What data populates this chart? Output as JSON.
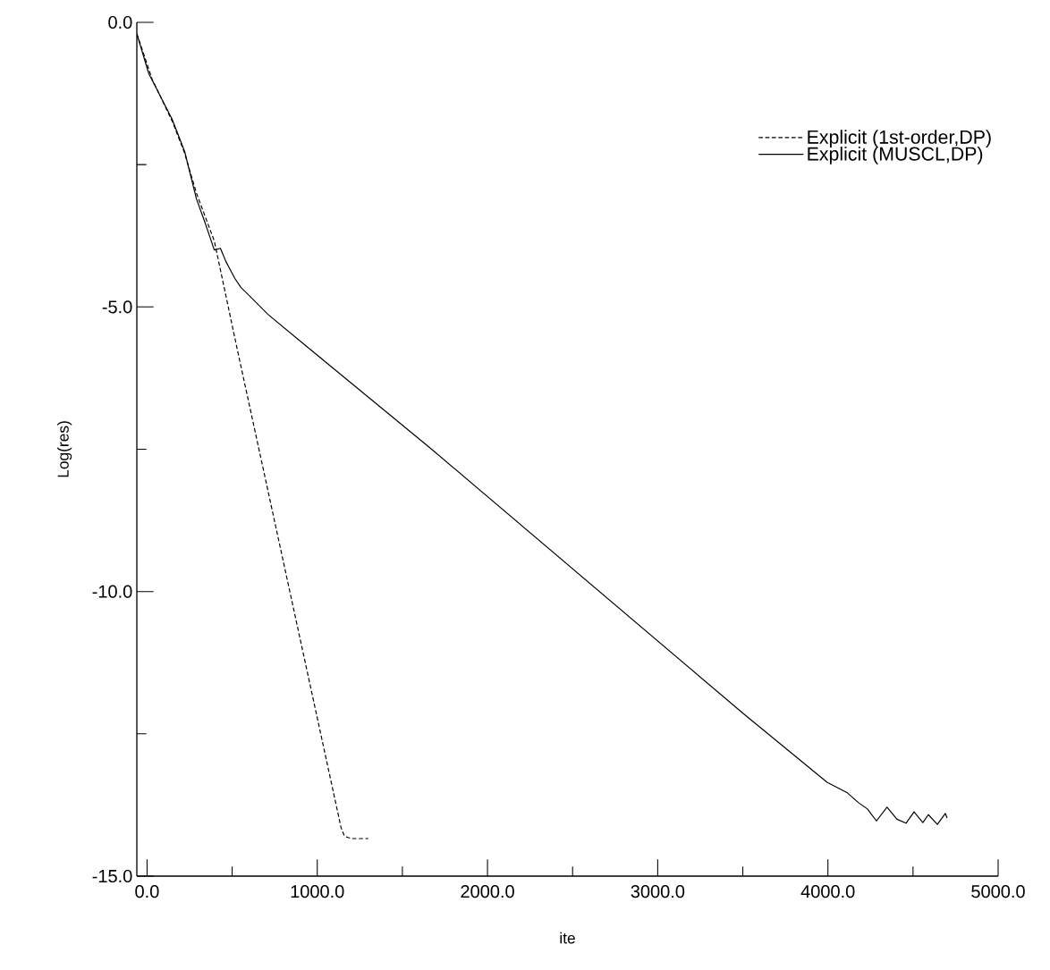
{
  "chart_data": {
    "type": "line",
    "xlabel": "ite",
    "ylabel": "Log(res)",
    "xlim": [
      -60,
      5000
    ],
    "ylim": [
      -15,
      0
    ],
    "xticks": [
      {
        "value": 0,
        "label": "0.0"
      },
      {
        "value": 500,
        "label": null
      },
      {
        "value": 1000,
        "label": "1000.0"
      },
      {
        "value": 1500,
        "label": null
      },
      {
        "value": 2000,
        "label": "2000.0"
      },
      {
        "value": 2500,
        "label": null
      },
      {
        "value": 3000,
        "label": "3000.0"
      },
      {
        "value": 3500,
        "label": null
      },
      {
        "value": 4000,
        "label": "4000.0"
      },
      {
        "value": 4500,
        "label": null
      },
      {
        "value": 5000,
        "label": "5000.0"
      }
    ],
    "yticks": [
      {
        "value": 0,
        "label": "0.0"
      },
      {
        "value": -2.5,
        "label": null
      },
      {
        "value": -5,
        "label": "-5.0"
      },
      {
        "value": -7.5,
        "label": null
      },
      {
        "value": -10,
        "label": "-10.0"
      },
      {
        "value": -12.5,
        "label": null
      },
      {
        "value": -15,
        "label": "-15.0"
      }
    ],
    "legend": "top right",
    "series": [
      {
        "name": "Explicit (1st-order,DP)",
        "color": "#000000",
        "line_style": "dashed",
        "x": [
          -60,
          30,
          150,
          221,
          290,
          395,
          526,
          1140,
          1160,
          1200,
          1300
        ],
        "values": [
          -0.2,
          -1.0,
          -1.75,
          -2.3,
          -3.0,
          -3.84,
          -5.69,
          -14.15,
          -14.3,
          -14.34,
          -14.34
        ]
      },
      {
        "name": "Explicit (MUSCL,DP)",
        "color": "#000000",
        "line_style": "solid",
        "x": [
          -60,
          10,
          147,
          221,
          290,
          342,
          395,
          431,
          463,
          516,
          552,
          620,
          710,
          936,
          1656,
          3505,
          3995,
          4111,
          4180,
          4232,
          4285,
          4347,
          4406,
          4459,
          4506,
          4558,
          4590,
          4643,
          4690,
          4700
        ],
        "values": [
          -0.2,
          -0.9,
          -1.7,
          -2.27,
          -3.1,
          -3.53,
          -4.0,
          -3.97,
          -4.2,
          -4.5,
          -4.66,
          -4.86,
          -5.13,
          -5.69,
          -7.46,
          -12.15,
          -13.35,
          -13.53,
          -13.71,
          -13.82,
          -14.03,
          -13.79,
          -14.0,
          -14.07,
          -13.87,
          -14.06,
          -13.92,
          -14.09,
          -13.9,
          -13.98
        ]
      }
    ]
  }
}
